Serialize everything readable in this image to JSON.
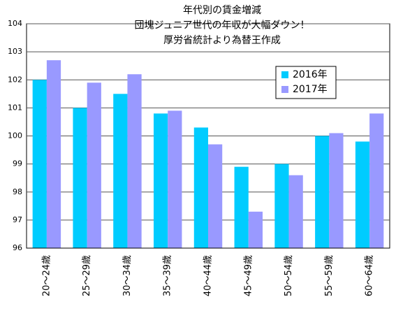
{
  "chart_data": {
    "type": "bar",
    "title": [
      "年代別の賃金増減",
      "団塊ジュニア世代の年収が大幅ダウン！",
      "厚労省統計より為替王作成"
    ],
    "categories": [
      "20～24歳",
      "25～29歳",
      "30～34歳",
      "35～39歳",
      "40～44歳",
      "45～49歳",
      "50～54歳",
      "55～59歳",
      "60～64歳"
    ],
    "series": [
      {
        "name": "2016年",
        "color": "#00ccff",
        "values": [
          102.0,
          101.0,
          101.5,
          100.8,
          100.3,
          98.9,
          99.0,
          100.0,
          99.8
        ]
      },
      {
        "name": "2017年",
        "color": "#9999ff",
        "values": [
          102.7,
          101.9,
          102.2,
          100.9,
          99.7,
          97.3,
          98.6,
          100.1,
          100.8
        ]
      }
    ],
    "ylim": [
      96,
      104
    ],
    "yticks": [
      96,
      97,
      98,
      99,
      100,
      101,
      102,
      103,
      104
    ],
    "grid": true,
    "legend": "upper-right"
  }
}
